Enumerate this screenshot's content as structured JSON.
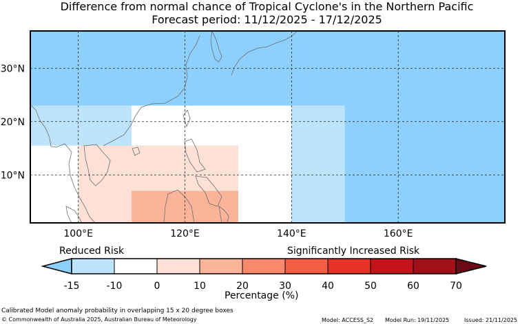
{
  "header": {
    "title": "Difference from normal chance of Tropical Cyclone's in the Northern Pacific",
    "subtitle": "Forecast period: 11/12/2025 - 17/12/2025"
  },
  "map": {
    "lon_range": [
      91,
      180
    ],
    "lat_range": [
      1,
      37
    ],
    "lat_ticks": [
      {
        "lat": 30,
        "label": "30°N"
      },
      {
        "lat": 20,
        "label": "20°N"
      },
      {
        "lat": 10,
        "label": "10°N"
      }
    ],
    "lon_ticks": [
      {
        "lon": 100,
        "label": "100°E"
      },
      {
        "lon": 120,
        "label": "120°E"
      },
      {
        "lon": 140,
        "label": "140°E"
      },
      {
        "lon": 160,
        "label": "160°E"
      }
    ],
    "gridline_style": "dashed",
    "ocean_default_color": "#8dd0fe"
  },
  "anomaly_boxes": [
    {
      "lon": [
        91,
        180
      ],
      "lat": [
        23,
        37
      ],
      "category": "below -15",
      "color": "#8dd0fe"
    },
    {
      "lon": [
        91,
        110
      ],
      "lat": [
        15.5,
        23
      ],
      "category": "-15 to -10",
      "color": "#bde3fd"
    },
    {
      "lon": [
        110,
        140
      ],
      "lat": [
        15.5,
        23
      ],
      "category": "-10 to 0",
      "color": "#ffffff"
    },
    {
      "lon": [
        91,
        100
      ],
      "lat": [
        1,
        15.5
      ],
      "category": "-10 to 0",
      "color": "#ffffff"
    },
    {
      "lon": [
        100,
        130
      ],
      "lat": [
        1,
        15.5
      ],
      "category": "0 to 10",
      "color": "#fde0d6"
    },
    {
      "lon": [
        130,
        140
      ],
      "lat": [
        1,
        15.5
      ],
      "category": "-10 to 0",
      "color": "#ffffff"
    },
    {
      "lon": [
        110,
        130
      ],
      "lat": [
        1,
        7
      ],
      "category": "10 to 20",
      "color": "#fbb49a"
    },
    {
      "lon": [
        140,
        150
      ],
      "lat": [
        1,
        23
      ],
      "category": "-15 to -10",
      "color": "#bde3fd"
    },
    {
      "lon": [
        150,
        180
      ],
      "lat": [
        1,
        23
      ],
      "category": "below -15",
      "color": "#8dd0fe"
    }
  ],
  "colorbar": {
    "left_label": "Reduced Risk",
    "right_label": "Significantly Increased Risk",
    "axis_label": "Percentage (%)",
    "tick_labels": [
      "-15",
      "-10",
      "0",
      "10",
      "20",
      "30",
      "40",
      "50",
      "60",
      "70"
    ],
    "under_color": "#8dd0fe",
    "over_color": "#6b0a14",
    "colors": [
      "#bde3fd",
      "#ffffff",
      "#fde0d6",
      "#fbb49a",
      "#f9896d",
      "#f45f44",
      "#e43227",
      "#c1151b",
      "#a10f19"
    ]
  },
  "footer": {
    "note": "Calibrated Model anomaly probability in overlapping 15 x 20 degree boxes",
    "copyright": "© Commonwealth of Australia 2025, Australian Bureau of Meteorology",
    "model": "Model: ACCESS_S2",
    "model_run": "Model Run: 19/11/2025",
    "issued": "Issued: 21/11/2025"
  }
}
